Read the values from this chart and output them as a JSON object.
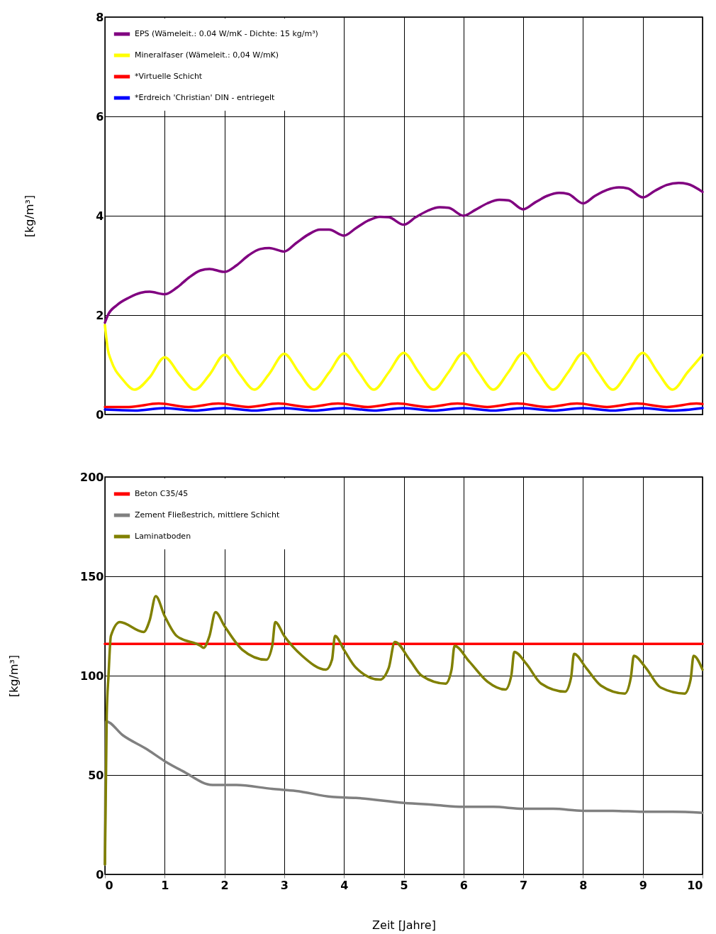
{
  "chart_data": [
    {
      "type": "line",
      "ylabel": "[kg/m³]",
      "xlim": [
        0,
        10
      ],
      "ylim": [
        0,
        8
      ],
      "xticks": [
        0,
        1,
        2,
        3,
        4,
        5,
        6,
        7,
        8,
        9,
        10
      ],
      "yticks": [
        0,
        2,
        4,
        6,
        8
      ],
      "grid": true,
      "legend": "top left",
      "tick_labels": "y",
      "line_style": "solid",
      "marker": "none",
      "series": [
        {
          "name": "EPS (Wämeleit.: 0.04 W/mK - Dichte: 15 kg/m³)",
          "color": "#800080",
          "x": [
            0,
            0.05,
            0.2,
            0.4,
            0.6,
            0.75,
            1.0,
            1.2,
            1.4,
            1.6,
            1.75,
            2.0,
            2.2,
            2.4,
            2.6,
            2.75,
            3.0,
            3.2,
            3.4,
            3.6,
            3.75,
            4.0,
            4.2,
            4.4,
            4.6,
            4.75,
            5.0,
            5.2,
            5.4,
            5.6,
            5.75,
            6.0,
            6.2,
            6.4,
            6.6,
            6.75,
            7.0,
            7.2,
            7.4,
            7.6,
            7.75,
            8.0,
            8.2,
            8.4,
            8.6,
            8.75,
            9.0,
            9.2,
            9.4,
            9.6,
            9.75,
            10.0
          ],
          "values": [
            1.85,
            2.0,
            2.2,
            2.35,
            2.45,
            2.47,
            2.42,
            2.55,
            2.75,
            2.9,
            2.93,
            2.87,
            3.0,
            3.2,
            3.33,
            3.35,
            3.28,
            3.45,
            3.62,
            3.72,
            3.72,
            3.6,
            3.75,
            3.9,
            3.98,
            3.97,
            3.82,
            3.97,
            4.1,
            4.17,
            4.16,
            4.0,
            4.12,
            4.25,
            4.32,
            4.31,
            4.13,
            4.27,
            4.4,
            4.46,
            4.44,
            4.25,
            4.4,
            4.52,
            4.57,
            4.55,
            4.37,
            4.5,
            4.62,
            4.66,
            4.64,
            4.48
          ]
        },
        {
          "name": "Mineralfaser (Wämeleit.: 0,04 W/mK)",
          "color": "#ffff00",
          "x": [
            0,
            0.05,
            0.1,
            0.3,
            0.5,
            0.75,
            1.0,
            1.25,
            1.5,
            1.75,
            2.0,
            2.25,
            2.5,
            2.75,
            3.0,
            3.25,
            3.5,
            3.75,
            4.0,
            4.25,
            4.5,
            4.75,
            5.0,
            5.25,
            5.5,
            5.75,
            6.0,
            6.25,
            6.5,
            6.75,
            7.0,
            7.25,
            7.5,
            7.75,
            8.0,
            8.25,
            8.5,
            8.75,
            9.0,
            9.25,
            9.5,
            9.75,
            10.0
          ],
          "values": [
            1.8,
            1.3,
            1.1,
            0.7,
            0.5,
            0.75,
            1.15,
            0.8,
            0.5,
            0.8,
            1.2,
            0.82,
            0.5,
            0.82,
            1.22,
            0.84,
            0.5,
            0.84,
            1.23,
            0.85,
            0.5,
            0.85,
            1.24,
            0.85,
            0.5,
            0.85,
            1.24,
            0.85,
            0.5,
            0.85,
            1.24,
            0.85,
            0.5,
            0.85,
            1.24,
            0.85,
            0.5,
            0.85,
            1.24,
            0.85,
            0.5,
            0.85,
            1.2
          ]
        },
        {
          "name": "*Virtuelle Schicht",
          "color": "#ff0000",
          "x": [
            0,
            0.4,
            0.9,
            1.4,
            1.9,
            2.4,
            2.9,
            3.4,
            3.9,
            4.4,
            4.9,
            5.4,
            5.9,
            6.4,
            6.9,
            7.4,
            7.9,
            8.4,
            8.9,
            9.4,
            9.9,
            10.0
          ],
          "values": [
            0.15,
            0.15,
            0.22,
            0.15,
            0.22,
            0.15,
            0.22,
            0.15,
            0.22,
            0.15,
            0.22,
            0.15,
            0.22,
            0.15,
            0.22,
            0.15,
            0.22,
            0.15,
            0.22,
            0.15,
            0.22,
            0.21
          ]
        },
        {
          "name": "*Erdreich 'Christian' DIN - entriegelt",
          "color": "#0000ff",
          "x": [
            0,
            0.5,
            1.0,
            1.5,
            2.0,
            2.5,
            3.0,
            3.5,
            4.0,
            4.5,
            5.0,
            5.5,
            6.0,
            6.5,
            7.0,
            7.5,
            8.0,
            8.5,
            9.0,
            9.5,
            10.0
          ],
          "values": [
            0.1,
            0.08,
            0.13,
            0.08,
            0.13,
            0.08,
            0.13,
            0.08,
            0.13,
            0.08,
            0.13,
            0.08,
            0.13,
            0.08,
            0.13,
            0.08,
            0.13,
            0.08,
            0.13,
            0.08,
            0.13
          ]
        }
      ]
    },
    {
      "type": "line",
      "xlabel": "Zeit [Jahre]",
      "ylabel": "[kg/m³]",
      "xlim": [
        0,
        10
      ],
      "ylim": [
        0,
        200
      ],
      "xticks": [
        0,
        1,
        2,
        3,
        4,
        5,
        6,
        7,
        8,
        9,
        10
      ],
      "yticks": [
        0,
        50,
        100,
        150,
        200
      ],
      "grid": true,
      "legend": "top left",
      "line_style": "solid",
      "marker": "none",
      "series": [
        {
          "name": "Beton C35/45",
          "color": "#ff0000",
          "x": [
            0,
            10
          ],
          "values": [
            116,
            116
          ]
        },
        {
          "name": "Zement Fließestrich, mittlere Schicht",
          "color": "#808080",
          "x": [
            0,
            0.02,
            0.3,
            0.7,
            1.0,
            1.3,
            1.8,
            2.2,
            2.8,
            3.2,
            3.8,
            4.2,
            5.0,
            5.5,
            6.0,
            6.5,
            7.0,
            7.5,
            8.0,
            8.5,
            9.0,
            9.5,
            10.0
          ],
          "values": [
            5,
            77,
            70,
            63,
            57,
            52,
            45,
            45,
            43,
            42,
            39,
            38.5,
            36,
            35,
            34,
            34,
            33,
            33,
            32,
            32,
            31.5,
            31.5,
            31
          ]
        },
        {
          "name": "Laminatboden",
          "color": "#808000",
          "x": [
            0,
            0.03,
            0.06,
            0.1,
            0.25,
            0.65,
            0.75,
            0.85,
            1.0,
            1.2,
            1.6,
            1.65,
            1.75,
            1.85,
            2.0,
            2.3,
            2.7,
            2.8,
            2.85,
            3.0,
            3.3,
            3.7,
            3.8,
            3.85,
            4.0,
            4.2,
            4.6,
            4.75,
            4.85,
            5.1,
            5.3,
            5.7,
            5.8,
            5.85,
            6.1,
            6.4,
            6.7,
            6.8,
            6.85,
            7.05,
            7.3,
            7.7,
            7.8,
            7.85,
            8.05,
            8.3,
            8.7,
            8.8,
            8.85,
            9.05,
            9.3,
            9.7,
            9.8,
            9.85,
            10.0
          ],
          "values": [
            5,
            80,
            100,
            120,
            127,
            122,
            128,
            140,
            130,
            120,
            115,
            114,
            120,
            132,
            125,
            113,
            108,
            115,
            127,
            120,
            110,
            103,
            108,
            120,
            113,
            104,
            98,
            104,
            117,
            108,
            100,
            96,
            103,
            115,
            107,
            97,
            93,
            100,
            112,
            106,
            96,
            92,
            99,
            111,
            104,
            95,
            91,
            99,
            110,
            104,
            94,
            91,
            98,
            110,
            103
          ]
        }
      ]
    }
  ]
}
